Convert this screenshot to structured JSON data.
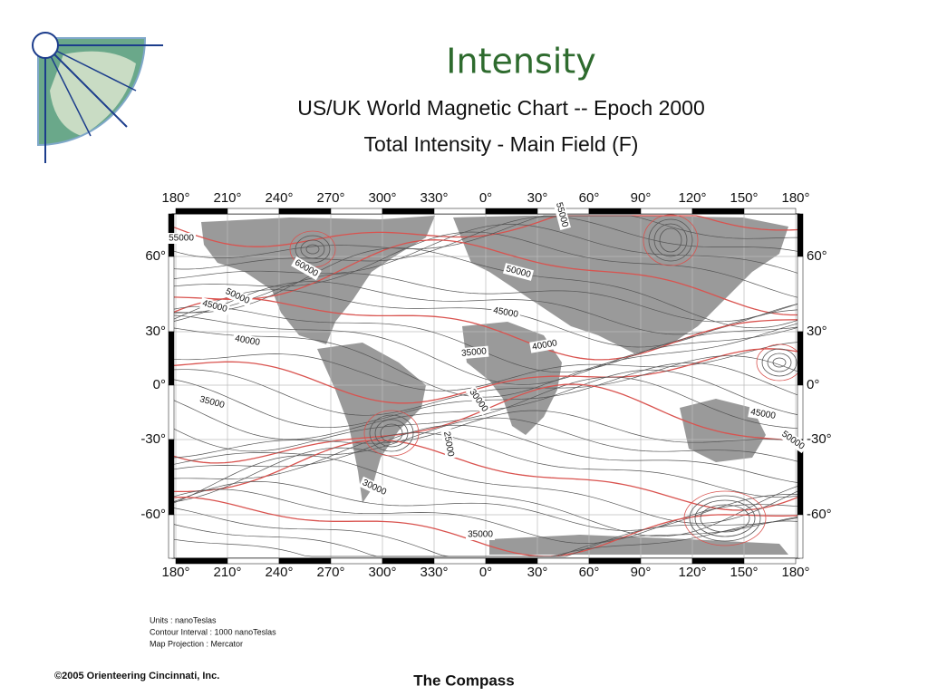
{
  "header": {
    "title": "Intensity"
  },
  "figure": {
    "title": "US/UK World Magnetic Chart  --  Epoch 2000",
    "subtitle": "Total Intensity - Main Field (F)",
    "longitude_labels": [
      "180°",
      "210°",
      "240°",
      "270°",
      "300°",
      "330°",
      "0°",
      "30°",
      "60°",
      "90°",
      "120°",
      "150°",
      "180°"
    ],
    "latitude_labels": [
      "60°",
      "30°",
      "0°",
      "-30°",
      "-60°"
    ],
    "contour_labels": [
      "55000",
      "60000",
      "50000",
      "45000",
      "40000",
      "35000",
      "30000",
      "25000",
      "35000",
      "30000",
      "35000",
      "45000",
      "50000",
      "55000",
      "40000",
      "45000",
      "50000"
    ],
    "notes": [
      "Units : nanoTeslas",
      "Contour Interval : 1000 nanoTeslas",
      "Map Projection : Mercator"
    ]
  },
  "footer": {
    "copyright": "©2005  Orienteering Cincinnati, Inc.",
    "center": "The Compass"
  }
}
